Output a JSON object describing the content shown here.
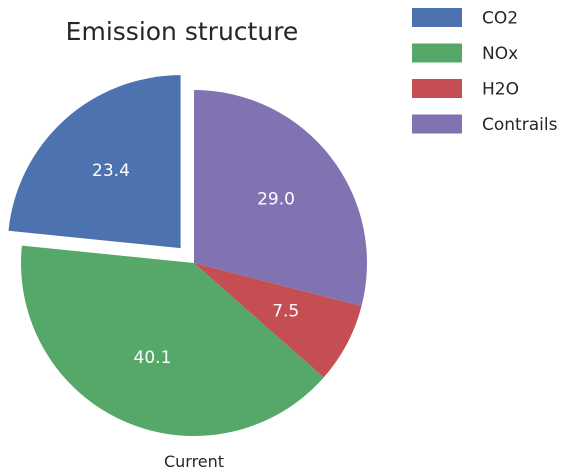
{
  "chart_data": {
    "type": "pie",
    "title": "Emission structure",
    "xlabel": "Current",
    "ylabel": "",
    "categories": [
      "CO2",
      "NOx",
      "H2O",
      "Contrails"
    ],
    "values": [
      23.4,
      40.1,
      7.5,
      29.0
    ],
    "data_labels": [
      "23.4",
      "40.1",
      "7.5",
      "29.0"
    ],
    "colors": [
      "#4c72b0",
      "#55a868",
      "#c44e52",
      "#8172b2"
    ],
    "exploded": [
      "CO2"
    ],
    "start_angle_deg": 90,
    "direction": "counterclockwise",
    "legend_position": "top-right"
  }
}
